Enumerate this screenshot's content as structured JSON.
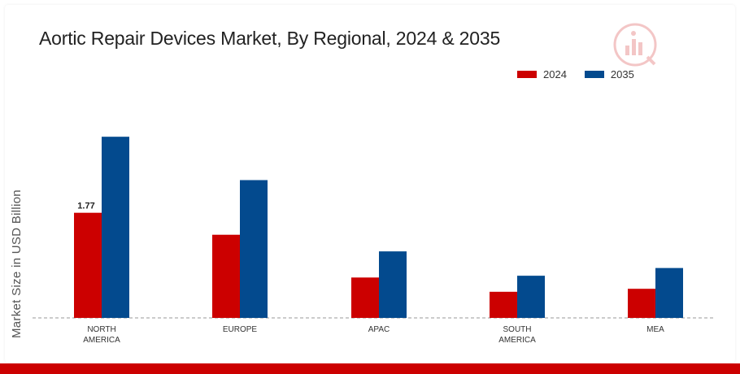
{
  "chart_data": {
    "type": "bar",
    "title": "Aortic Repair Devices Market, By Regional, 2024 & 2035",
    "ylabel": "Market Size in USD Billion",
    "xlabel": "",
    "categories": [
      "NORTH AMERICA",
      "EUROPE",
      "APAC",
      "SOUTH AMERICA",
      "MEA"
    ],
    "category_lines": [
      [
        "NORTH",
        "AMERICA"
      ],
      [
        "EUROPE"
      ],
      [
        "APAC"
      ],
      [
        "SOUTH",
        "AMERICA"
      ],
      [
        "MEA"
      ]
    ],
    "series": [
      {
        "name": "2024",
        "color": "#cc0000",
        "values": [
          1.77,
          1.4,
          0.68,
          0.44,
          0.49
        ]
      },
      {
        "name": "2035",
        "color": "#034a8e",
        "values": [
          3.05,
          2.32,
          1.12,
          0.71,
          0.84
        ]
      }
    ],
    "data_labels": [
      {
        "series": 0,
        "index": 0,
        "text": "1.77"
      }
    ],
    "ylim": [
      0,
      3.6
    ],
    "grid": false,
    "legend_position": "top-right",
    "baseline_style": "dashed"
  },
  "logo": {
    "icon": "market-research-logo-icon"
  }
}
